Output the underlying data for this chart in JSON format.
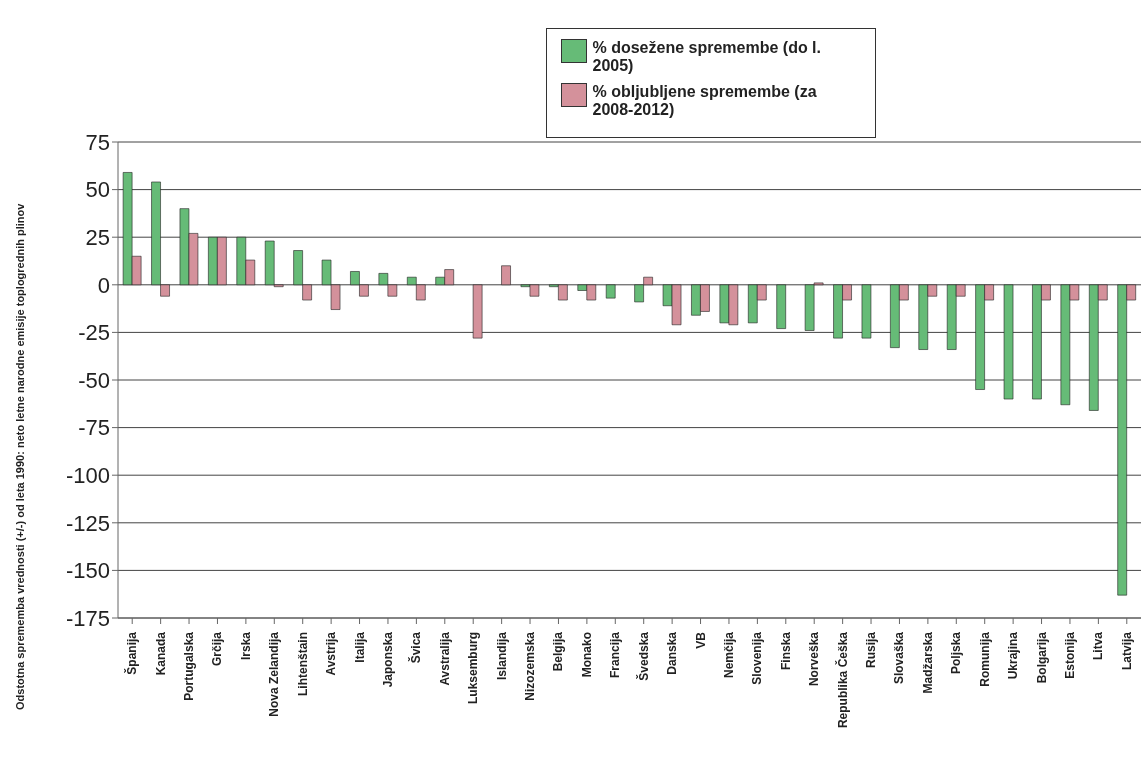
{
  "chart_data": {
    "type": "bar",
    "ylabel": "Odstotna sprememba vrednosti (+/-) od leta 1990: neto letne narodne emisije toplogrednih plinov",
    "categories": [
      "Španija",
      "Kanada",
      "Portugalska",
      "Grčija",
      "Irska",
      "Nova Zelandija",
      "Lihtenštain",
      "Avstrija",
      "Italija",
      "Japonska",
      "Švica",
      "Avstralija",
      "Luksemburg",
      "Islandija",
      "Nizozemska",
      "Belgija",
      "Monako",
      "Francija",
      "Švedska",
      "Danska",
      "VB",
      "Nemčija",
      "Slovenija",
      "Finska",
      "Norveška",
      "Republika Češka",
      "Rusija",
      "Slovaška",
      "Madžarska",
      "Poljska",
      "Romunija",
      "Ukrajina",
      "Bolgarija",
      "Estonija",
      "Litva",
      "Latvija"
    ],
    "series": [
      {
        "name": "% dosežene spremembe (do l. 2005)",
        "color": "#66bb77",
        "values": [
          59,
          54,
          40,
          25,
          25,
          23,
          18,
          13,
          7,
          6,
          4,
          4,
          0,
          0,
          -1,
          -1,
          -3,
          -7,
          -9,
          -11,
          -16,
          -20,
          -20,
          -23,
          -24,
          -28,
          -28,
          -33,
          -34,
          -34,
          -55,
          -60,
          -60,
          -63,
          -66,
          -163
        ]
      },
      {
        "name": "% obljubljene spremembe (za  2008-2012)",
        "color": "#d4919b",
        "values": [
          15,
          -6,
          27,
          25,
          13,
          -1,
          -8,
          -13,
          -6,
          -6,
          -8,
          8,
          -28,
          10,
          -6,
          -8,
          -8,
          0,
          4,
          -21,
          -14,
          -21,
          -8,
          0,
          1,
          -8,
          0,
          -8,
          -6,
          -6,
          -8,
          0,
          -8,
          -8,
          -8,
          -8
        ]
      }
    ],
    "ylim": [
      -175,
      75
    ],
    "yticks": [
      -175,
      -150,
      -125,
      -100,
      -75,
      -50,
      -25,
      0,
      25,
      50,
      75
    ],
    "grid": "y",
    "legend": "top"
  }
}
